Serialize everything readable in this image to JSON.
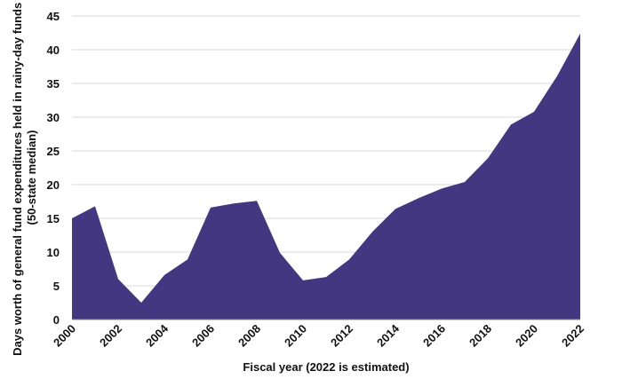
{
  "chart_data": {
    "type": "area",
    "title": "",
    "xlabel": "Fiscal year (2022 is estimated)",
    "ylabel_line1": "Days worth of general fund expenditures held in rainy-day funds",
    "ylabel_line2": "(50-state median)",
    "x": [
      2000,
      2001,
      2002,
      2003,
      2004,
      2005,
      2006,
      2007,
      2008,
      2009,
      2010,
      2011,
      2012,
      2013,
      2014,
      2015,
      2016,
      2017,
      2018,
      2019,
      2020,
      2021,
      2022
    ],
    "values": [
      15.0,
      16.8,
      6.0,
      2.5,
      6.6,
      8.9,
      16.6,
      17.2,
      17.6,
      9.9,
      5.8,
      6.3,
      8.9,
      13.0,
      16.4,
      18.0,
      19.4,
      20.4,
      23.9,
      28.9,
      30.8,
      36.1,
      42.4
    ],
    "xticks": [
      "2000",
      "2002",
      "2004",
      "2006",
      "2008",
      "2010",
      "2012",
      "2014",
      "2016",
      "2018",
      "2020",
      "2022"
    ],
    "yticks": [
      "0",
      "5",
      "10",
      "15",
      "20",
      "25",
      "30",
      "35",
      "40",
      "45"
    ],
    "ylim": [
      0,
      45
    ],
    "xlim": [
      2000,
      2022
    ],
    "grid": "horizontal",
    "colors": {
      "area": "#443781",
      "grid": "#d9d9d9",
      "baseline": "#8c8c8c"
    }
  }
}
